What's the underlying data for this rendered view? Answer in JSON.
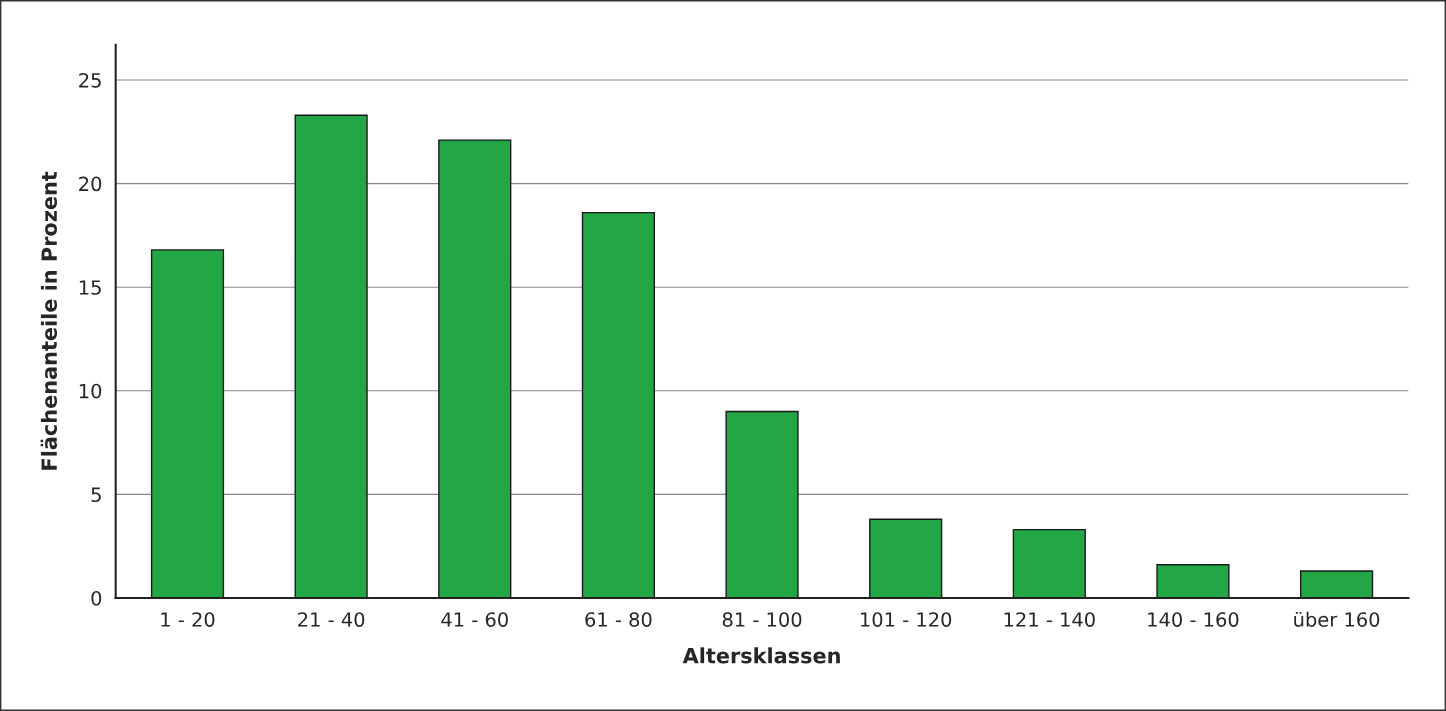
{
  "chart_data": {
    "type": "bar",
    "xlabel": "Altersklassen",
    "ylabel": "Flächenanteile in Prozent",
    "categories": [
      "1 - 20",
      "21 - 40",
      "41 - 60",
      "61 - 80",
      "81 - 100",
      "101 - 120",
      "121 - 140",
      "140 - 160",
      "über 160"
    ],
    "values": [
      16.8,
      23.3,
      22.1,
      18.6,
      9.0,
      3.8,
      3.3,
      1.6,
      1.3
    ],
    "color": "#23a646",
    "ylim": [
      0,
      26.7
    ],
    "yticks": [
      0,
      5,
      10,
      15,
      20,
      25
    ],
    "grid": "y"
  }
}
